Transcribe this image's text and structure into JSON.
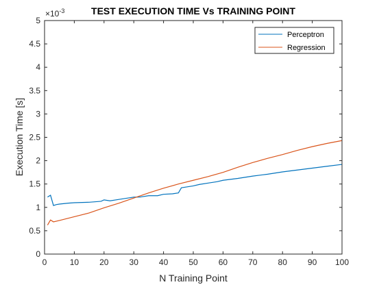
{
  "chart_data": {
    "type": "line",
    "title": "TEST EXECUTION TIME Vs TRAINING POINT",
    "xlabel": "N Training Point",
    "ylabel": "Execution Time [s]",
    "y_exponent_label": "×10",
    "y_exponent_power": "-3",
    "xlim": [
      0,
      100
    ],
    "ylim": [
      0,
      5
    ],
    "x_ticks": [
      0,
      10,
      20,
      30,
      40,
      50,
      60,
      70,
      80,
      90,
      100
    ],
    "y_ticks": [
      0,
      0.5,
      1,
      1.5,
      2,
      2.5,
      3,
      3.5,
      4,
      4.5,
      5
    ],
    "x_tick_labels": [
      "0",
      "10",
      "20",
      "30",
      "40",
      "50",
      "60",
      "70",
      "80",
      "90",
      "100"
    ],
    "y_tick_labels": [
      "0",
      "0.5",
      "1",
      "1.5",
      "2",
      "2.5",
      "3",
      "3.5",
      "4",
      "4.5",
      "5"
    ],
    "grid": false,
    "legend_position": "top-right",
    "series": [
      {
        "name": "Perceptron",
        "color": "#0072BD",
        "points": [
          [
            1,
            1.22
          ],
          [
            2,
            1.26
          ],
          [
            3,
            1.04
          ],
          [
            4,
            1.06
          ],
          [
            5,
            1.07
          ],
          [
            8,
            1.09
          ],
          [
            10,
            1.1
          ],
          [
            15,
            1.11
          ],
          [
            19,
            1.13
          ],
          [
            20,
            1.16
          ],
          [
            22,
            1.14
          ],
          [
            25,
            1.17
          ],
          [
            28,
            1.2
          ],
          [
            30,
            1.22
          ],
          [
            32,
            1.22
          ],
          [
            35,
            1.25
          ],
          [
            38,
            1.25
          ],
          [
            40,
            1.28
          ],
          [
            43,
            1.29
          ],
          [
            45,
            1.31
          ],
          [
            46,
            1.42
          ],
          [
            48,
            1.44
          ],
          [
            50,
            1.46
          ],
          [
            52,
            1.49
          ],
          [
            55,
            1.52
          ],
          [
            58,
            1.55
          ],
          [
            60,
            1.58
          ],
          [
            65,
            1.62
          ],
          [
            70,
            1.67
          ],
          [
            75,
            1.71
          ],
          [
            80,
            1.76
          ],
          [
            85,
            1.8
          ],
          [
            90,
            1.84
          ],
          [
            95,
            1.88
          ],
          [
            100,
            1.92
          ]
        ]
      },
      {
        "name": "Regression",
        "color": "#D95319",
        "points": [
          [
            1,
            0.62
          ],
          [
            2,
            0.73
          ],
          [
            3,
            0.69
          ],
          [
            5,
            0.72
          ],
          [
            10,
            0.8
          ],
          [
            15,
            0.88
          ],
          [
            20,
            0.99
          ],
          [
            25,
            1.09
          ],
          [
            30,
            1.2
          ],
          [
            35,
            1.31
          ],
          [
            40,
            1.41
          ],
          [
            45,
            1.5
          ],
          [
            50,
            1.58
          ],
          [
            55,
            1.66
          ],
          [
            60,
            1.75
          ],
          [
            65,
            1.86
          ],
          [
            70,
            1.96
          ],
          [
            75,
            2.05
          ],
          [
            80,
            2.13
          ],
          [
            85,
            2.22
          ],
          [
            90,
            2.3
          ],
          [
            95,
            2.37
          ],
          [
            100,
            2.43
          ]
        ]
      }
    ]
  }
}
